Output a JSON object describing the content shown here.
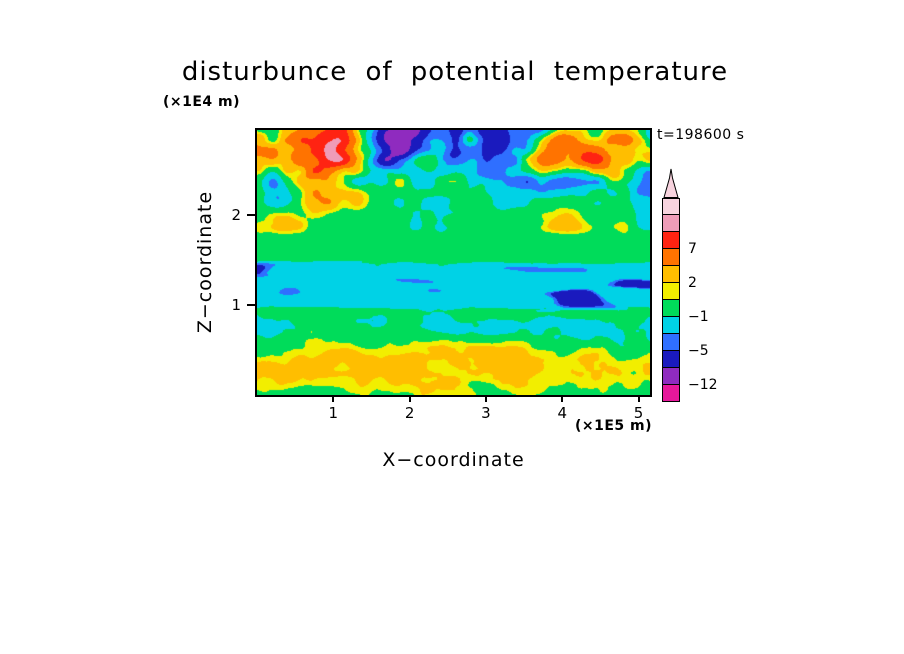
{
  "chart": {
    "title": "disturbunce of potential temperature",
    "timestamp": "t=198600 s",
    "x_axis": {
      "label": "X−coordinate",
      "unit": "(×1E5 m)",
      "ticks": [
        1,
        2,
        3,
        4,
        5
      ]
    },
    "z_axis": {
      "label": "Z−coordinate",
      "unit": "(×1E4 m)",
      "ticks": [
        1,
        2
      ]
    },
    "colorbar": {
      "labels": [
        {
          "text": "7",
          "boundary": 3
        },
        {
          "text": "2",
          "boundary": 5
        },
        {
          "text": "−1",
          "boundary": 7
        },
        {
          "text": "−5",
          "boundary": 9
        },
        {
          "text": "−12",
          "boundary": 11
        }
      ]
    }
  },
  "chart_data": {
    "type": "heatmap",
    "subtype": "filled-contour",
    "title": "disturbunce of potential temperature",
    "xlabel": "X−coordinate",
    "ylabel": "Z−coordinate",
    "x_unit": "(×1E5 m)",
    "z_unit": "(×1E4 m)",
    "time_label": "t=198600 s",
    "time_s": 198600,
    "x_ticks": [
      1,
      2,
      3,
      4,
      5
    ],
    "z_ticks": [
      1,
      2
    ],
    "x_range": [
      0,
      5.15
    ],
    "z_range": [
      0,
      2.95
    ],
    "x_range_m": [
      0,
      515000
    ],
    "z_range_m": [
      0,
      29500
    ],
    "colorbar_tick_values": [
      7,
      2,
      -1,
      -5,
      -12
    ],
    "levels": [
      -12,
      -8,
      -5,
      -3,
      -1,
      1,
      2,
      4,
      7,
      10,
      13
    ],
    "palette": [
      "#e6189b",
      "#8f2bbf",
      "#1a1abe",
      "#2f6fff",
      "#00d2e6",
      "#00dc5a",
      "#f2ee00",
      "#ffbe00",
      "#ff7300",
      "#ff2312",
      "#ef9cb8",
      "#f7d3de"
    ],
    "grid": false,
    "legend_position": "right-colorbar-with-overflow-arrow",
    "features": [
      "stratified green/yellow layers with thin cyan streaks below z ≈ 1 (×1E4 m)",
      "continuous cyan layer with elongated dark-blue pockets near z ≈ 1.0–1.4 (×1E4 m)",
      "nearly uniform green layer at z ≈ 1.5–1.75 (×1E4 m)",
      "turbulent cells above z ≈ 1.8 (×1E4 m): orange/red patches (top-left strongest) and dark-blue pockets near the top center-right, fan-like wave rays converging toward top center"
    ],
    "render_params": {
      "noise": {
        "n1": [
          0.85,
          3.1,
          1.5,
          7.2,
          3
        ],
        "n2": [
          2.4,
          11.3,
          4.2,
          2.8,
          3
        ],
        "nE": [
          1.05,
          5.7,
          6.5,
          9.9,
          2
        ],
        "nT": [
          1.35,
          1.7,
          2.1,
          4.3,
          3
        ]
      },
      "low": {
        "base": 1.0,
        "sin_amp": 1.7,
        "sin_k": 7.2,
        "sin_phase": -0.6,
        "warp": 1.5,
        "n2_amp": 1.9
      },
      "band": {
        "base": -2.2,
        "blob_amp": -5.6,
        "blob_lo": 0.15,
        "blob_hi": 0.7,
        "green_amp": 2.2,
        "green_lo": 0.5,
        "green_hi": 0.9
      },
      "mid": {
        "base": -0.1,
        "n2_amp": 1.0,
        "n1_amp": 0.6
      },
      "top": {
        "base": 0.8,
        "amp0": 4.2,
        "amp1": 4.6,
        "amp_z0": 1.95,
        "amp_z1": 2.75,
        "nt_gain": 1.6,
        "ray_amp": 1.6,
        "ray_k": 7.5,
        "ray_cx": 2.7,
        "ray_cz": 3.35,
        "ray_z0": 1.85,
        "ray_z1": 2.4,
        "bumps": [
          [
            2.8,
            0.7,
            0.8,
            1.85,
            2.35
          ],
          [
            -3.4,
            3.9,
            0.5,
            2.45,
            2.85
          ],
          [
            -3.0,
            2.35,
            0.28,
            2.5,
            2.9
          ],
          [
            -1.6,
            3.2,
            2.2,
            2.55,
            2.95
          ],
          [
            2.3,
            1.35,
            0.35,
            2.3,
            2.75
          ]
        ]
      },
      "blend": {
        "band": [
          0.9,
          1.03
        ],
        "mid": [
          1.4,
          1.52
        ],
        "top": [
          1.74,
          1.9
        ]
      }
    }
  }
}
